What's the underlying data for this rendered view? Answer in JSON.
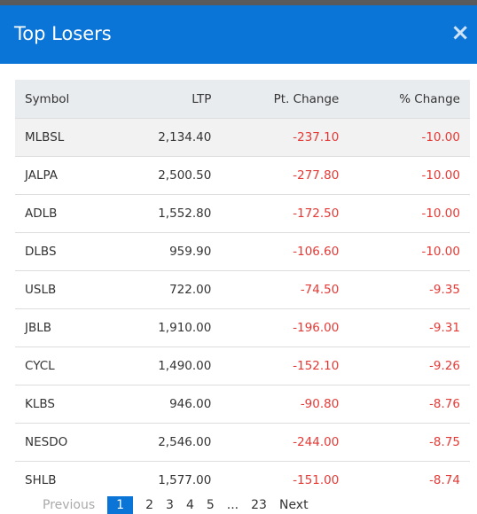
{
  "header": {
    "title": "Top Losers",
    "close": "×"
  },
  "table": {
    "columns": [
      "Symbol",
      "LTP",
      "Pt. Change",
      "% Change"
    ],
    "rows": [
      [
        "MLBSL",
        "2,134.40",
        "-237.10",
        "-10.00"
      ],
      [
        "JALPA",
        "2,500.50",
        "-277.80",
        "-10.00"
      ],
      [
        "ADLB",
        "1,552.80",
        "-172.50",
        "-10.00"
      ],
      [
        "DLBS",
        "959.90",
        "-106.60",
        "-10.00"
      ],
      [
        "USLB",
        "722.00",
        "-74.50",
        "-9.35"
      ],
      [
        "JBLB",
        "1,910.00",
        "-196.00",
        "-9.31"
      ],
      [
        "CYCL",
        "1,490.00",
        "-152.10",
        "-9.26"
      ],
      [
        "KLBS",
        "946.00",
        "-90.80",
        "-8.76"
      ],
      [
        "NESDO",
        "2,546.00",
        "-244.00",
        "-8.75"
      ],
      [
        "SHLB",
        "1,577.00",
        "-151.00",
        "-8.74"
      ]
    ]
  },
  "pagination": [
    "Previous",
    "1",
    "2",
    "3",
    "4",
    "5",
    "...",
    "23",
    "Next"
  ]
}
